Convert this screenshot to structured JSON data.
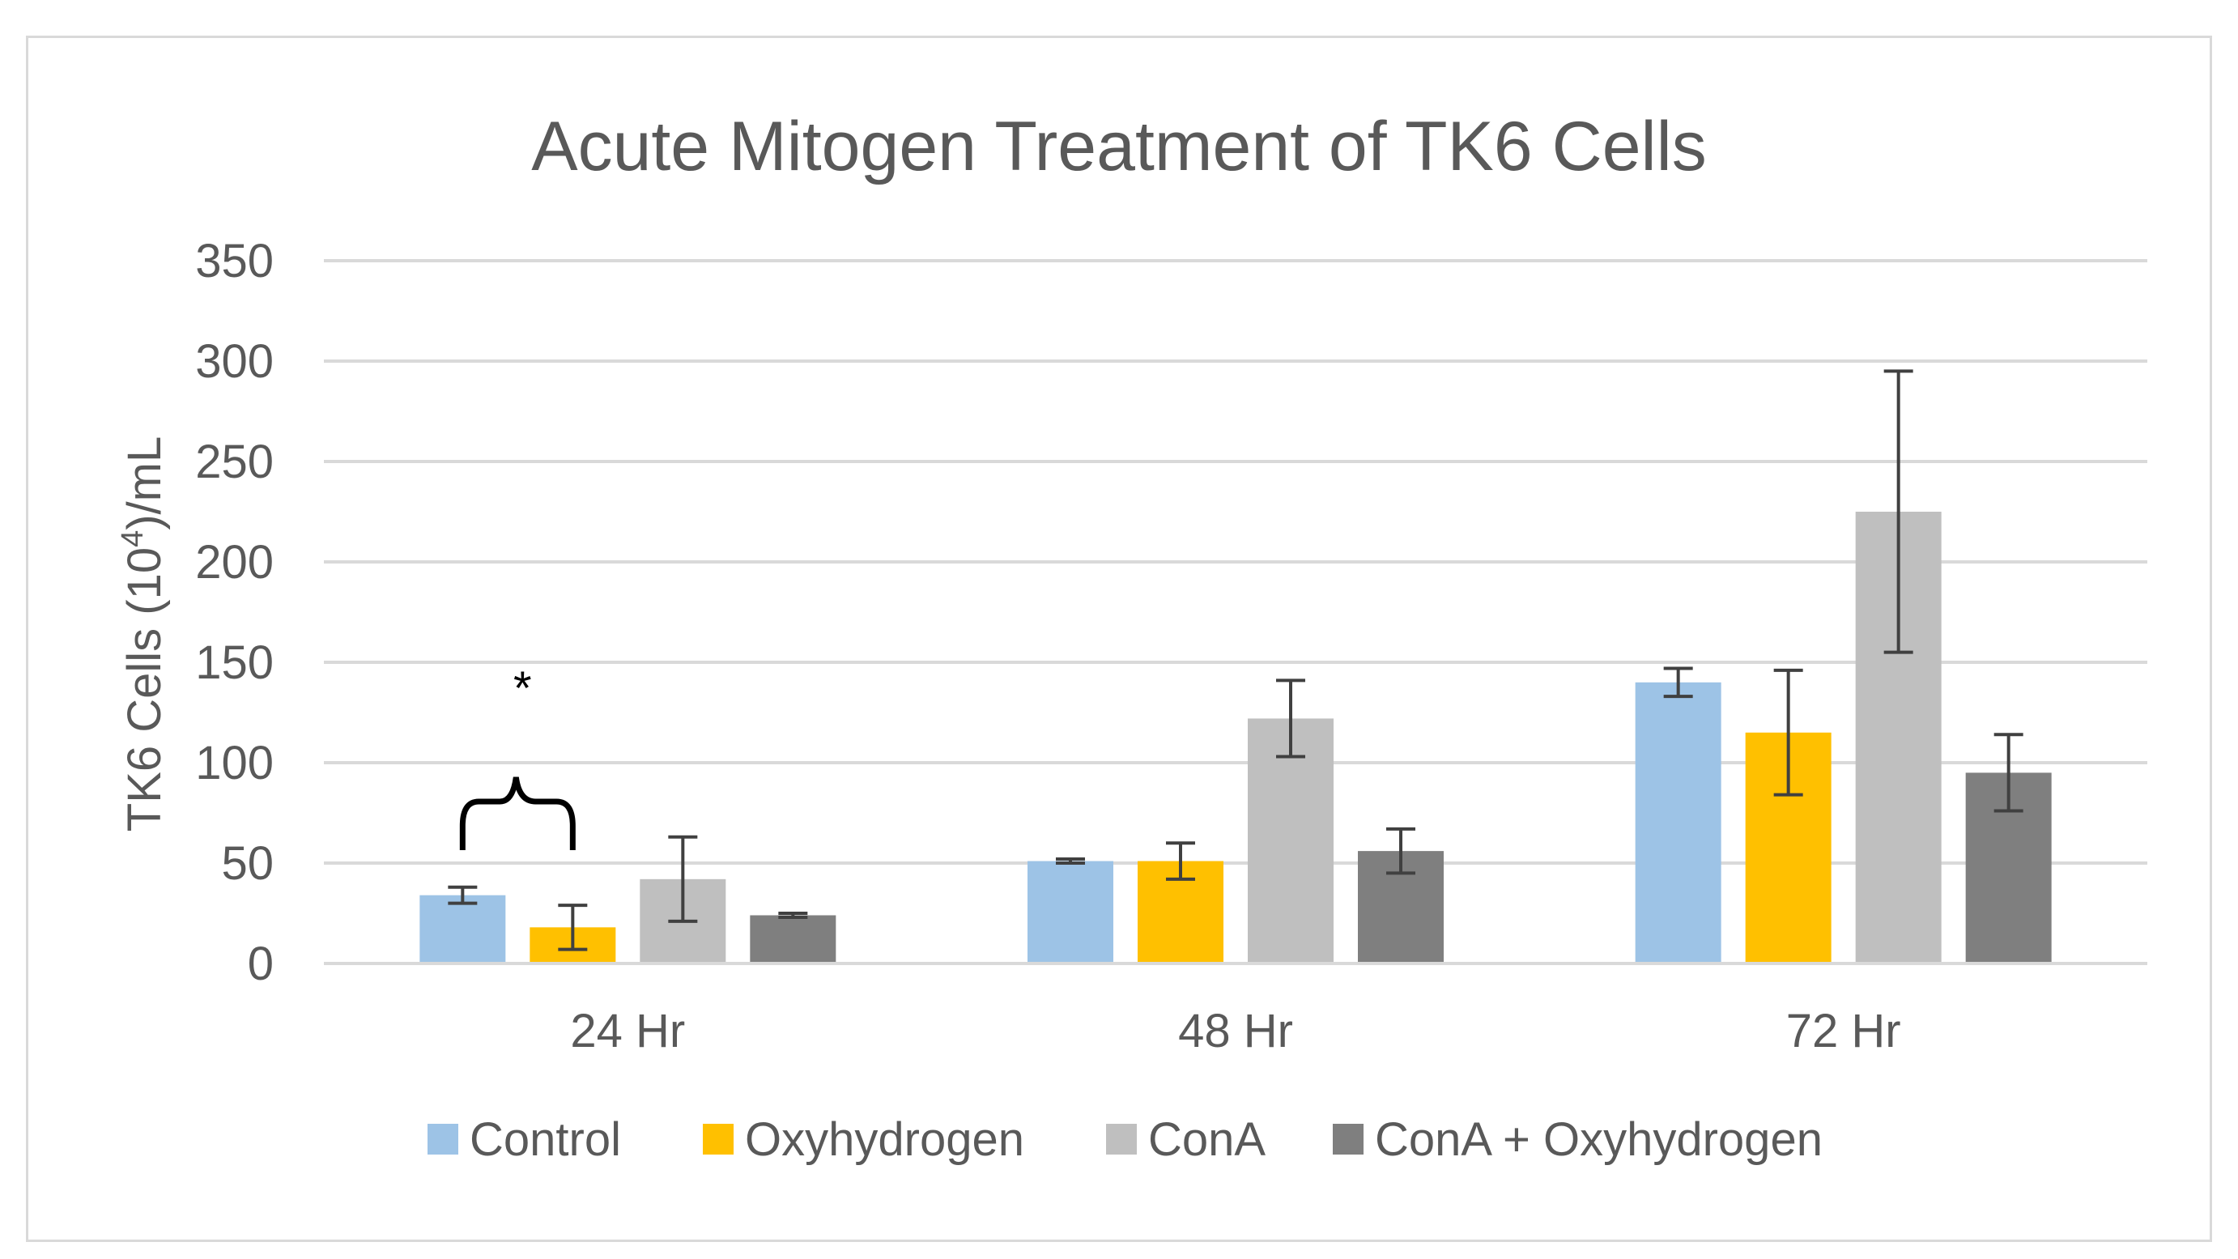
{
  "chart_data": {
    "type": "bar",
    "title": "Acute Mitogen Treatment of TK6 Cells",
    "ylabel_main": "TK6 Cells (10",
    "ylabel_sup": "4",
    "ylabel_tail": ")/mL",
    "xlabel": "",
    "ylim": [
      0,
      350
    ],
    "yticks": [
      0,
      50,
      100,
      150,
      200,
      250,
      300,
      350
    ],
    "grid": true,
    "legend_position": "bottom",
    "categories": [
      "24 Hr",
      "48 Hr",
      "72 Hr"
    ],
    "series": [
      {
        "name": "Control",
        "color": "#9dc3e6",
        "values": [
          34,
          51,
          140
        ],
        "errors": [
          4,
          1,
          7
        ]
      },
      {
        "name": "Oxyhydrogen",
        "color": "#ffc000",
        "values": [
          18,
          51,
          115
        ],
        "errors": [
          11,
          9,
          31
        ]
      },
      {
        "name": "ConA",
        "color": "#bfbfbf",
        "values": [
          42,
          122,
          225
        ],
        "errors": [
          21,
          19,
          70
        ]
      },
      {
        "name": "ConA + Oxyhydrogen",
        "color": "#7f7f7f",
        "values": [
          24,
          56,
          95
        ],
        "errors": [
          1,
          11,
          19
        ]
      }
    ],
    "annotation": {
      "text": "*",
      "category_index": 0
    }
  }
}
